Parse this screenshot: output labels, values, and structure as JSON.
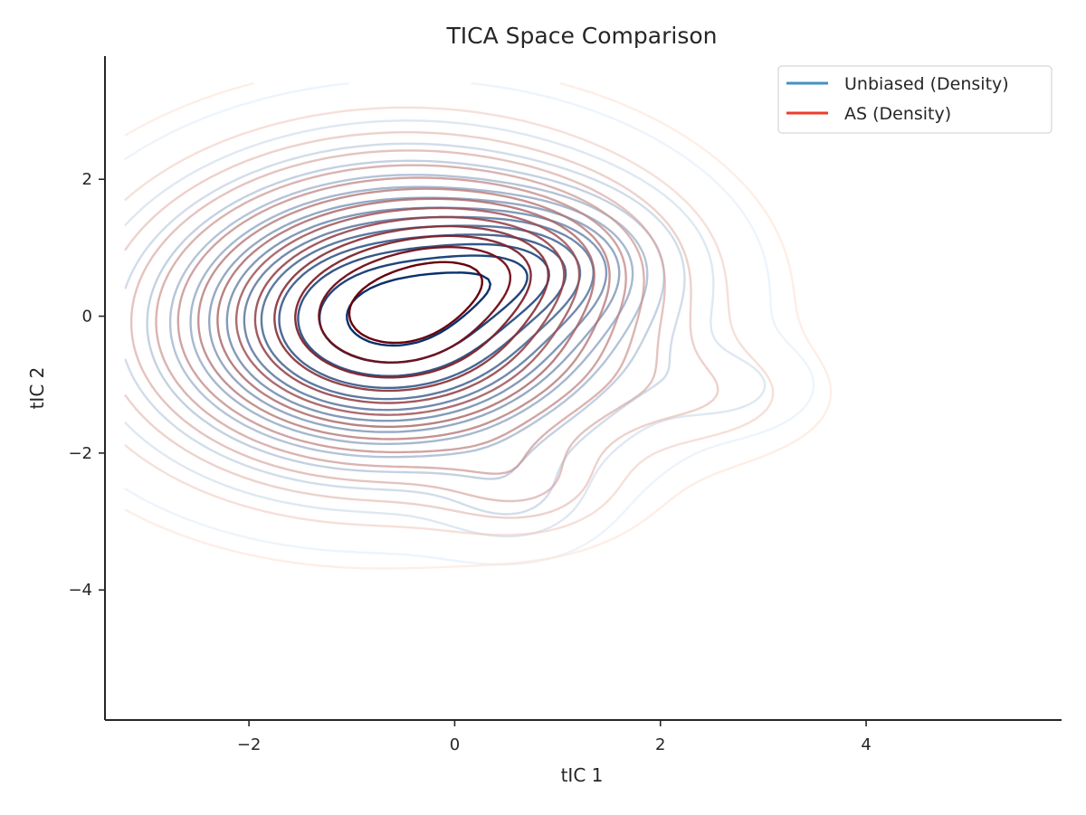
{
  "chart_data": {
    "type": "contour",
    "title": "TICA Space Comparison",
    "xlabel": "tIC 1",
    "ylabel": "tIC 2",
    "xlim": [
      -3.4,
      5.9
    ],
    "ylim": [
      -5.9,
      3.8
    ],
    "xticks": [
      -2,
      0,
      2,
      4
    ],
    "yticks": [
      -4,
      -2,
      0,
      2
    ],
    "grid": false,
    "legend_position": "top-right",
    "series": [
      {
        "name": "Unbiased (Density)",
        "legend_color": "#4292c6",
        "color_light": "#deebf7",
        "color_dark": "#08306b",
        "levels": 14,
        "components": [
          {
            "cx": -0.6,
            "cy": 0.0,
            "sx": 1.45,
            "sy": 1.35,
            "w": 1.0,
            "theta": 0.35
          },
          {
            "cx": 0.9,
            "cy": 0.8,
            "sx": 0.7,
            "sy": 0.6,
            "w": 0.3,
            "theta": 0.0
          },
          {
            "cx": 0.6,
            "cy": -2.7,
            "sx": 0.5,
            "sy": 0.5,
            "w": 0.12,
            "theta": 0.0
          },
          {
            "cx": 2.7,
            "cy": -1.05,
            "sx": 0.5,
            "sy": 0.4,
            "w": 0.1,
            "theta": 0.0
          }
        ]
      },
      {
        "name": "AS (Density)",
        "legend_color": "#ef3b2c",
        "color_light": "#fee0d2",
        "color_dark": "#67000d",
        "levels": 14,
        "components": [
          {
            "cx": -0.6,
            "cy": 0.0,
            "sx": 1.55,
            "sy": 1.45,
            "w": 1.0,
            "theta": 0.3
          },
          {
            "cx": 0.6,
            "cy": 0.9,
            "sx": 0.8,
            "sy": 0.6,
            "w": 0.22,
            "theta": 0.0
          },
          {
            "cx": 0.7,
            "cy": -2.55,
            "sx": 0.55,
            "sy": 0.45,
            "w": 0.14,
            "theta": 0.0
          },
          {
            "cx": 2.6,
            "cy": -1.2,
            "sx": 0.65,
            "sy": 0.5,
            "w": 0.1,
            "theta": 0.0
          }
        ]
      }
    ]
  }
}
